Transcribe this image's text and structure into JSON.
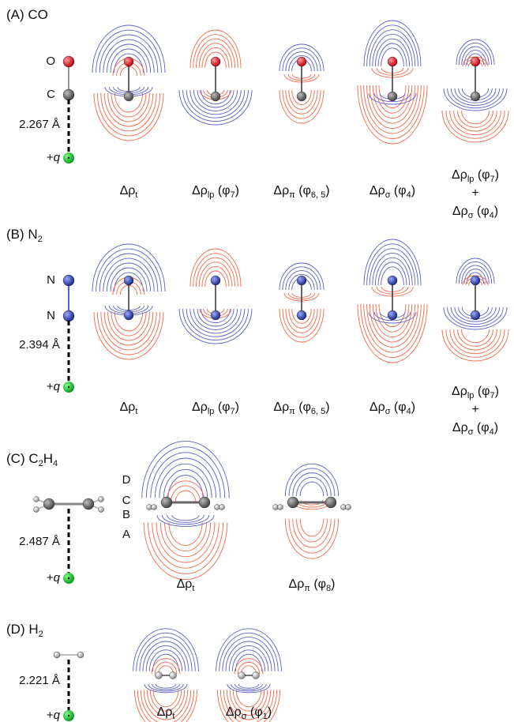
{
  "panels": [
    {
      "title": [
        {
          "text": "(A) CO"
        }
      ],
      "atoms": [
        "O",
        "C"
      ],
      "distance": "2.267 Å",
      "charge": {
        "sign": "+",
        "symbol": "q"
      },
      "maps": [
        {
          "caption": [
            [
              {
                "text": "Δρ"
              },
              {
                "text": "t",
                "sub": true
              }
            ]
          ]
        },
        {
          "caption": [
            [
              {
                "text": "Δρ"
              },
              {
                "text": "lp",
                "sub": true
              },
              {
                "text": " (φ"
              },
              {
                "text": "7",
                "sub": true
              },
              {
                "text": ")"
              }
            ]
          ]
        },
        {
          "caption": [
            [
              {
                "text": "Δρ"
              },
              {
                "text": "π",
                "sub": true
              },
              {
                "text": " (φ"
              },
              {
                "text": "6, 5",
                "sub": true
              },
              {
                "text": ")"
              }
            ]
          ]
        },
        {
          "caption": [
            [
              {
                "text": "Δρ"
              },
              {
                "text": "σ",
                "sub": true
              },
              {
                "text": " (φ"
              },
              {
                "text": "4",
                "sub": true
              },
              {
                "text": ")"
              }
            ]
          ]
        },
        {
          "caption": [
            [
              {
                "text": "Δρ"
              },
              {
                "text": "lp",
                "sub": true
              },
              {
                "text": " (φ"
              },
              {
                "text": "7",
                "sub": true
              },
              {
                "text": ")"
              }
            ],
            [
              {
                "text": "+"
              }
            ],
            [
              {
                "text": "Δρ"
              },
              {
                "text": "σ",
                "sub": true
              },
              {
                "text": " (φ"
              },
              {
                "text": "4",
                "sub": true
              },
              {
                "text": ")"
              }
            ]
          ]
        }
      ]
    },
    {
      "title": [
        {
          "text": "(B) N"
        },
        {
          "text": "2",
          "sub": true
        }
      ],
      "atoms": [
        "N",
        "N"
      ],
      "distance": "2.394 Å",
      "charge": {
        "sign": "+",
        "symbol": "q"
      },
      "maps": [
        {
          "caption": [
            [
              {
                "text": "Δρ"
              },
              {
                "text": "t",
                "sub": true
              }
            ]
          ]
        },
        {
          "caption": [
            [
              {
                "text": "Δρ"
              },
              {
                "text": "lp",
                "sub": true
              },
              {
                "text": " (φ"
              },
              {
                "text": "7",
                "sub": true
              },
              {
                "text": ")"
              }
            ]
          ]
        },
        {
          "caption": [
            [
              {
                "text": "Δρ"
              },
              {
                "text": "π",
                "sub": true
              },
              {
                "text": " (φ"
              },
              {
                "text": "6, 5",
                "sub": true
              },
              {
                "text": ")"
              }
            ]
          ]
        },
        {
          "caption": [
            [
              {
                "text": "Δρ"
              },
              {
                "text": "σ",
                "sub": true
              },
              {
                "text": " (φ"
              },
              {
                "text": "4",
                "sub": true
              },
              {
                "text": ")"
              }
            ]
          ]
        },
        {
          "caption": [
            [
              {
                "text": "Δρ"
              },
              {
                "text": "lp",
                "sub": true
              },
              {
                "text": " (φ"
              },
              {
                "text": "7",
                "sub": true
              },
              {
                "text": ")"
              }
            ],
            [
              {
                "text": "+"
              }
            ],
            [
              {
                "text": "Δρ"
              },
              {
                "text": "σ",
                "sub": true
              },
              {
                "text": " (φ"
              },
              {
                "text": "4",
                "sub": true
              },
              {
                "text": ")"
              }
            ]
          ]
        }
      ]
    },
    {
      "title": [
        {
          "text": "(C) C"
        },
        {
          "text": "2",
          "sub": true
        },
        {
          "text": "H"
        },
        {
          "text": "4",
          "sub": true
        }
      ],
      "distance": "2.487 Å",
      "charge": {
        "sign": "+",
        "symbol": "q"
      },
      "levels": [
        "D",
        "C",
        "B",
        "A"
      ],
      "maps": [
        {
          "caption": [
            [
              {
                "text": "Δρ"
              },
              {
                "text": "t",
                "sub": true
              }
            ]
          ]
        },
        {
          "caption": [
            [
              {
                "text": "Δρ"
              },
              {
                "text": "π",
                "sub": true
              },
              {
                "text": " (φ"
              },
              {
                "text": "8",
                "sub": true
              },
              {
                "text": ")"
              }
            ]
          ]
        }
      ]
    },
    {
      "title": [
        {
          "text": "(D) H"
        },
        {
          "text": "2",
          "sub": true
        }
      ],
      "distance": "2.221 Å",
      "charge": {
        "sign": "+",
        "symbol": "q"
      },
      "maps": [
        {
          "caption": [
            [
              {
                "text": "Δρ"
              },
              {
                "text": "t",
                "sub": true
              }
            ]
          ]
        },
        {
          "caption": [
            [
              {
                "text": "Δρ"
              },
              {
                "text": "σ",
                "sub": true
              },
              {
                "text": " (φ"
              },
              {
                "text": "1",
                "sub": true
              },
              {
                "text": ")"
              }
            ]
          ]
        }
      ]
    }
  ]
}
